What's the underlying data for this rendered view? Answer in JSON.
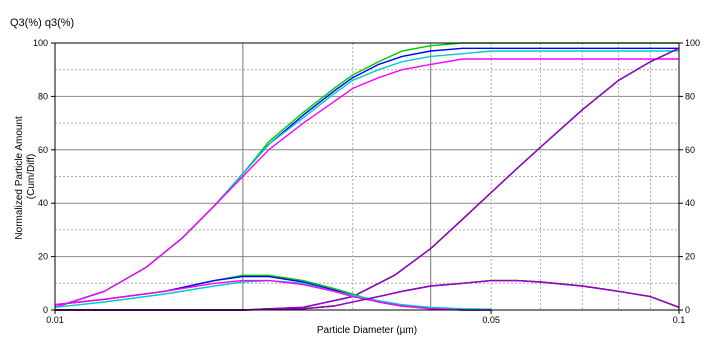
{
  "chart_data": {
    "type": "line",
    "title": "Q3(%) q3(%)",
    "xlabel": "Particle Diameter (µm)",
    "ylabel": "Normalized Particle Amount\n(Cum/Diff)",
    "x_scale": "log",
    "xlim": [
      0.01,
      0.1
    ],
    "ylim": [
      0,
      100
    ],
    "x_ticks": [
      0.01,
      0.05,
      0.1
    ],
    "x_tick_labels": [
      "0.01",
      "0.05",
      "0.1"
    ],
    "y_ticks": [
      0,
      20,
      40,
      60,
      80,
      100
    ],
    "y_tick_labels": [
      "0",
      "20",
      "40",
      "60",
      "80",
      "100"
    ],
    "right_y_tick_labels": [
      "0",
      "20",
      "40",
      "60",
      "80",
      "100"
    ],
    "grid": true,
    "legend": "none",
    "series": [
      {
        "color": "#00cc00",
        "x": [
          0.01,
          0.012,
          0.014,
          0.016,
          0.018,
          0.02,
          0.022,
          0.025,
          0.028,
          0.03,
          0.033,
          0.036,
          0.04,
          0.045,
          0.05,
          0.06,
          0.07,
          0.08,
          0.1
        ],
        "y": [
          1,
          7,
          16,
          27,
          39,
          51,
          63,
          74,
          83,
          88,
          93,
          97,
          99,
          100,
          100,
          100,
          100,
          100,
          100
        ]
      },
      {
        "color": "#0000ff",
        "x": [
          0.01,
          0.012,
          0.014,
          0.016,
          0.018,
          0.02,
          0.022,
          0.025,
          0.028,
          0.03,
          0.033,
          0.036,
          0.04,
          0.045,
          0.05,
          0.06,
          0.07,
          0.08,
          0.1
        ],
        "y": [
          1,
          7,
          16,
          27,
          39,
          51,
          62,
          73,
          82,
          87,
          92,
          95,
          97,
          98,
          98,
          98,
          98,
          98,
          98
        ]
      },
      {
        "color": "#00cccc",
        "x": [
          0.01,
          0.012,
          0.014,
          0.016,
          0.018,
          0.02,
          0.022,
          0.025,
          0.028,
          0.03,
          0.033,
          0.036,
          0.04,
          0.045,
          0.05,
          0.06,
          0.07,
          0.08,
          0.1
        ],
        "y": [
          1,
          7,
          16,
          27,
          39,
          51,
          62,
          72,
          81,
          86,
          90,
          93,
          95,
          96,
          97,
          97,
          97,
          97,
          97
        ]
      },
      {
        "color": "#ff00ff",
        "x": [
          0.01,
          0.012,
          0.014,
          0.016,
          0.018,
          0.02,
          0.022,
          0.025,
          0.028,
          0.03,
          0.033,
          0.036,
          0.04,
          0.045,
          0.05,
          0.06,
          0.07,
          0.08,
          0.1
        ],
        "y": [
          1,
          7,
          16,
          27,
          39,
          50,
          60,
          70,
          78,
          83,
          87,
          90,
          92,
          94,
          94,
          94,
          94,
          94,
          94
        ]
      },
      {
        "color": "#000000",
        "x": [
          0.01,
          0.02,
          0.025,
          0.03,
          0.035,
          0.04,
          0.045,
          0.05,
          0.055,
          0.06,
          0.07,
          0.08,
          0.09,
          0.1
        ],
        "y": [
          0,
          0,
          1,
          5,
          13,
          23,
          34,
          44,
          53,
          61,
          75,
          86,
          93,
          98
        ]
      },
      {
        "color": "#9900cc",
        "x": [
          0.01,
          0.02,
          0.025,
          0.03,
          0.035,
          0.04,
          0.045,
          0.05,
          0.055,
          0.06,
          0.07,
          0.08,
          0.09,
          0.1
        ],
        "y": [
          0,
          0,
          1,
          5,
          13,
          23,
          34,
          44,
          53,
          61,
          75,
          86,
          93,
          98
        ]
      },
      {
        "color": "#00cc00",
        "x": [
          0.01,
          0.012,
          0.015,
          0.018,
          0.02,
          0.022,
          0.025,
          0.028,
          0.03,
          0.033,
          0.036,
          0.04,
          0.045,
          0.05
        ],
        "y": [
          2,
          4,
          7,
          11,
          13,
          13,
          11,
          8,
          6,
          3,
          1.5,
          0.5,
          0,
          0
        ]
      },
      {
        "color": "#0000ff",
        "x": [
          0.01,
          0.012,
          0.015,
          0.018,
          0.02,
          0.022,
          0.025,
          0.028,
          0.03,
          0.033,
          0.036,
          0.04,
          0.045,
          0.05
        ],
        "y": [
          2,
          4,
          7,
          11,
          12.5,
          12.5,
          10.5,
          7.5,
          5.5,
          3,
          1.5,
          0.5,
          0,
          0
        ]
      },
      {
        "color": "#00cccc",
        "x": [
          0.01,
          0.012,
          0.015,
          0.018,
          0.02,
          0.022,
          0.025,
          0.028,
          0.03,
          0.033,
          0.036,
          0.04,
          0.045,
          0.05
        ],
        "y": [
          1,
          3,
          6,
          9,
          10.5,
          11,
          10,
          7,
          5.5,
          3.5,
          2,
          1,
          0.5,
          0.3
        ]
      },
      {
        "color": "#ff00ff",
        "x": [
          0.01,
          0.012,
          0.015,
          0.018,
          0.02,
          0.022,
          0.025,
          0.028,
          0.03,
          0.033,
          0.036,
          0.04,
          0.045,
          0.05
        ],
        "y": [
          2,
          4,
          7,
          10,
          11,
          11,
          9.5,
          7,
          5,
          3,
          1.5,
          0.5,
          0,
          0
        ]
      },
      {
        "color": "#000000",
        "x": [
          0.01,
          0.02,
          0.025,
          0.028,
          0.03,
          0.033,
          0.036,
          0.04,
          0.045,
          0.05,
          0.055,
          0.06,
          0.07,
          0.08,
          0.09,
          0.1
        ],
        "y": [
          0,
          0,
          0.5,
          1.5,
          3,
          5,
          7,
          9,
          10,
          11,
          11,
          10.5,
          9,
          7,
          5,
          1
        ]
      },
      {
        "color": "#9900cc",
        "x": [
          0.01,
          0.02,
          0.025,
          0.028,
          0.03,
          0.033,
          0.036,
          0.04,
          0.045,
          0.05,
          0.055,
          0.06,
          0.07,
          0.08,
          0.09,
          0.1
        ],
        "y": [
          0,
          0,
          0.5,
          1.5,
          3,
          5,
          7,
          9,
          10,
          11,
          11,
          10.5,
          9,
          7,
          5,
          1
        ]
      }
    ]
  }
}
